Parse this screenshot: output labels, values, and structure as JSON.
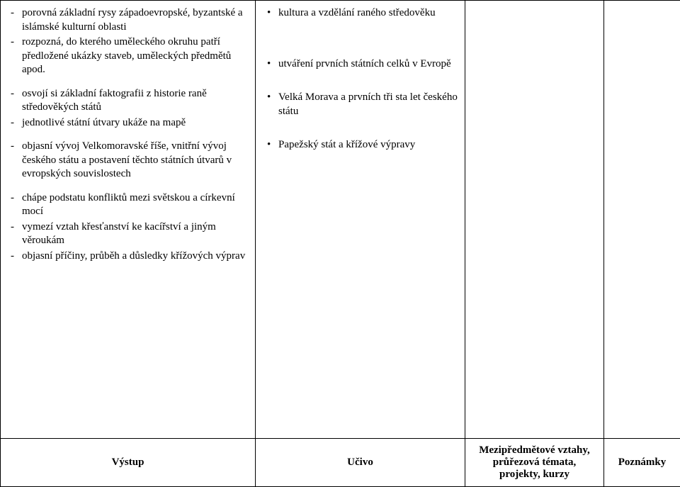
{
  "colors": {
    "text": "#000000",
    "border": "#000000",
    "background": "#ffffff"
  },
  "font": {
    "family": "Times New Roman",
    "size_pt": 11
  },
  "header": {
    "col1": "Výstup",
    "col2": "Učivo",
    "col3": "Mezipředmětové vztahy, průřezová témata, projekty, kurzy",
    "col4": "Poznámky"
  },
  "col1": {
    "g1": {
      "i0": "porovná základní rysy západoevropské, byzantské a islámské kulturní oblasti",
      "i1": "rozpozná, do kterého uměleckého okruhu patří předložené ukázky staveb, uměleckých předmětů apod."
    },
    "g2": {
      "i0": "osvojí si základní faktografii z historie raně středověkých států",
      "i1": "jednotlivé státní útvary ukáže na mapě"
    },
    "g3": {
      "i0": "objasní vývoj Velkomoravské říše, vnitřní vývoj českého státu a postavení těchto státních útvarů v evropských souvislostech"
    },
    "g4": {
      "i0": "chápe podstatu konfliktů mezi světskou a církevní mocí",
      "i1": "vymezí vztah křesťanství ke kacířství a jiným věroukám",
      "i2": "objasní příčiny, průběh a důsledky křížových výprav"
    }
  },
  "col2": {
    "b1": {
      "i0": "kultura a vzdělání raného středověku"
    },
    "b2": {
      "i0": "utváření prvních státních celků v Evropě"
    },
    "b3": {
      "i0": "Velká Morava a prvních tři sta let českého státu"
    },
    "b4": {
      "i0": "Papežský stát a křížové výpravy"
    }
  }
}
